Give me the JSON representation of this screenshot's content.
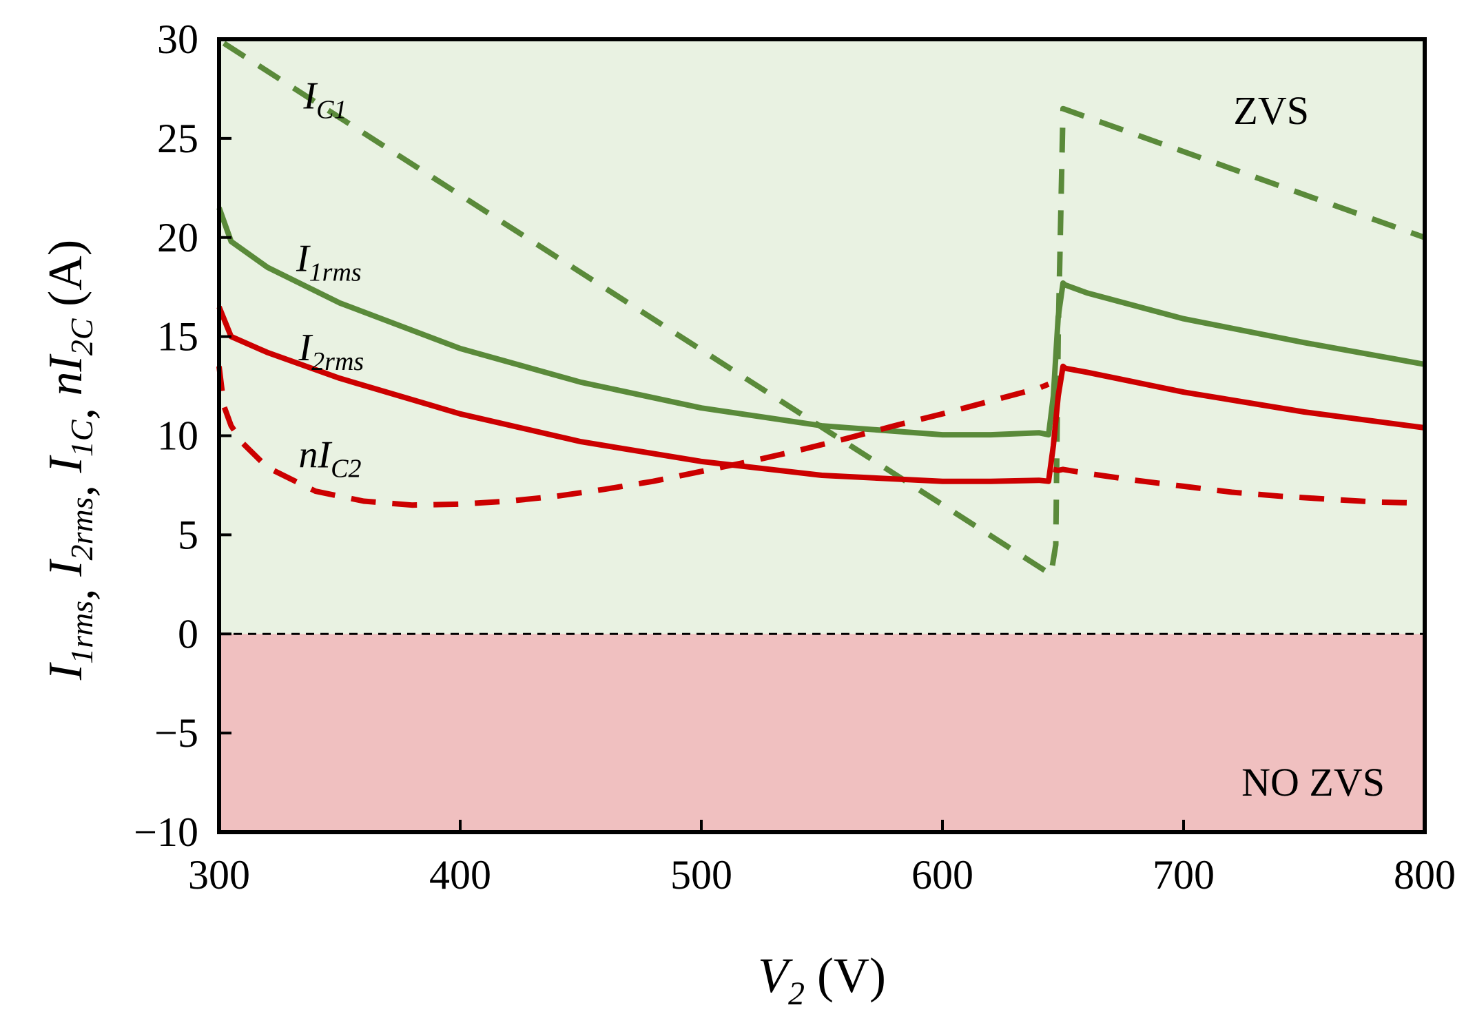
{
  "chart_data": {
    "type": "line",
    "xlabel": {
      "main": "V",
      "sub": "2",
      "unit": " (V)"
    },
    "ylabel": {
      "parts": [
        {
          "main": "I",
          "sub": "1rms",
          "sep": ", "
        },
        {
          "main": "I",
          "sub": "2rms",
          "sep": ", "
        },
        {
          "main": "I",
          "sub": "1C",
          "sep": ", "
        },
        {
          "main": "nI",
          "sub": "2C",
          "sep": ""
        }
      ],
      "unit": " (A)"
    },
    "xlim": [
      300,
      800
    ],
    "ylim": [
      -10,
      30
    ],
    "xticks": [
      300,
      400,
      500,
      600,
      700,
      800
    ],
    "yticks": [
      -10,
      -5,
      0,
      5,
      10,
      15,
      20,
      25,
      30
    ],
    "ytick_labels": [
      "−10",
      "−5",
      "0",
      "5",
      "10",
      "15",
      "20",
      "25",
      "30"
    ],
    "grid": false,
    "regions": [
      {
        "label": "ZVS",
        "from": 0,
        "to": 30,
        "color": "#e9f2e2"
      },
      {
        "label": "NO ZVS",
        "from": -10,
        "to": 0,
        "color": "#f0c0c0"
      }
    ],
    "reference_line": {
      "y": 0,
      "style": "dashed"
    },
    "series": [
      {
        "label_main": "I",
        "label_sub": "C1",
        "label_x": 335,
        "label_y": 26.5,
        "color": "#5a8a3a",
        "style": "dashed",
        "x": [
          302,
          645,
          647,
          648,
          650,
          800
        ],
        "y": [
          29.8,
          3.0,
          4.5,
          15.0,
          26.5,
          20.0
        ]
      },
      {
        "label_main": "I",
        "label_sub": "1rms",
        "label_x": 332,
        "label_y": 18.3,
        "color": "#5a8a3a",
        "style": "solid",
        "x": [
          300,
          305,
          320,
          350,
          400,
          450,
          500,
          550,
          600,
          620,
          640,
          644,
          646,
          648,
          650,
          651,
          660,
          700,
          750,
          800
        ],
        "y": [
          21.5,
          19.8,
          18.5,
          16.7,
          14.4,
          12.7,
          11.4,
          10.5,
          10.05,
          10.05,
          10.15,
          10.05,
          12.0,
          16.0,
          17.7,
          17.6,
          17.2,
          15.9,
          14.7,
          13.6
        ]
      },
      {
        "label_main": "I",
        "label_sub": "2rms",
        "label_x": 333,
        "label_y": 13.8,
        "color": "#cc0000",
        "style": "solid",
        "x": [
          300,
          305,
          320,
          350,
          400,
          450,
          500,
          550,
          600,
          620,
          640,
          644,
          646,
          648,
          650,
          651,
          660,
          700,
          750,
          800
        ],
        "y": [
          16.5,
          15.0,
          14.2,
          12.9,
          11.1,
          9.7,
          8.7,
          8.0,
          7.7,
          7.7,
          7.75,
          7.7,
          9.5,
          12.0,
          13.5,
          13.4,
          13.2,
          12.2,
          11.2,
          10.4
        ]
      },
      {
        "label_main": "nI",
        "label_sub": "C2",
        "label_x": 333,
        "label_y": 8.4,
        "color": "#cc0000",
        "style": "dashed",
        "segments": [
          {
            "x": [
              300,
              302,
              305,
              310,
              320,
              340,
              360,
              380,
              400,
              420,
              440,
              460,
              480,
              500,
              520,
              540,
              560,
              580,
              600,
              620,
              640,
              644
            ],
            "y": [
              13.5,
              11.5,
              10.5,
              9.6,
              8.4,
              7.2,
              6.7,
              6.5,
              6.55,
              6.7,
              6.95,
              7.3,
              7.7,
              8.2,
              8.7,
              9.25,
              9.85,
              10.5,
              11.1,
              11.75,
              12.4,
              12.6
            ]
          },
          {
            "x": [
              646,
              648,
              650,
              660,
              680,
              700,
              720,
              740,
              760,
              780,
              800
            ],
            "y": [
              8.3,
              8.25,
              8.3,
              8.1,
              7.75,
              7.45,
              7.15,
              6.95,
              6.8,
              6.65,
              6.6
            ]
          }
        ]
      }
    ]
  }
}
